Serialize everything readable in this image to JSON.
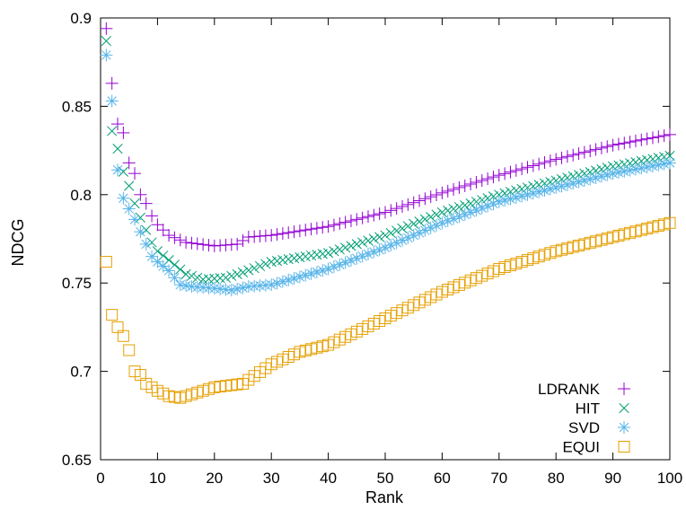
{
  "chart_data": {
    "type": "scatter",
    "xlabel": "Rank",
    "ylabel": "NDCG",
    "xlim": [
      0,
      100
    ],
    "ylim": [
      0.65,
      0.9
    ],
    "x_ticks": [
      0,
      10,
      20,
      30,
      40,
      50,
      60,
      70,
      80,
      90,
      100
    ],
    "y_ticks": [
      "0.65",
      "0.7",
      "0.75",
      "0.8",
      "0.85",
      "0.9"
    ],
    "grid": false,
    "legend_position": "bottom-right",
    "x_series_range": [
      1,
      100
    ],
    "series": [
      {
        "name": "LDRANK",
        "marker": "plus",
        "color": "#9400d3",
        "anchors": [
          [
            1,
            0.894
          ],
          [
            2,
            0.863
          ],
          [
            3,
            0.84
          ],
          [
            4,
            0.835
          ],
          [
            5,
            0.818
          ],
          [
            6,
            0.812
          ],
          [
            7,
            0.8
          ],
          [
            8,
            0.795
          ],
          [
            9,
            0.788
          ],
          [
            10,
            0.783
          ],
          [
            12,
            0.777
          ],
          [
            15,
            0.773
          ],
          [
            20,
            0.771
          ],
          [
            24,
            0.772
          ],
          [
            26,
            0.776
          ],
          [
            30,
            0.777
          ],
          [
            40,
            0.782
          ],
          [
            50,
            0.79
          ],
          [
            60,
            0.801
          ],
          [
            70,
            0.811
          ],
          [
            80,
            0.82
          ],
          [
            90,
            0.828
          ],
          [
            100,
            0.834
          ]
        ]
      },
      {
        "name": "HIT",
        "marker": "x",
        "color": "#009e73",
        "anchors": [
          [
            1,
            0.887
          ],
          [
            2,
            0.836
          ],
          [
            3,
            0.826
          ],
          [
            4,
            0.813
          ],
          [
            5,
            0.805
          ],
          [
            6,
            0.795
          ],
          [
            7,
            0.787
          ],
          [
            8,
            0.78
          ],
          [
            9,
            0.773
          ],
          [
            10,
            0.768
          ],
          [
            12,
            0.763
          ],
          [
            15,
            0.755
          ],
          [
            18,
            0.752
          ],
          [
            22,
            0.753
          ],
          [
            25,
            0.756
          ],
          [
            30,
            0.762
          ],
          [
            40,
            0.767
          ],
          [
            50,
            0.777
          ],
          [
            60,
            0.79
          ],
          [
            70,
            0.8
          ],
          [
            80,
            0.808
          ],
          [
            90,
            0.816
          ],
          [
            100,
            0.822
          ]
        ]
      },
      {
        "name": "SVD",
        "marker": "star",
        "color": "#56b4e9",
        "anchors": [
          [
            1,
            0.879
          ],
          [
            2,
            0.853
          ],
          [
            3,
            0.814
          ],
          [
            4,
            0.798
          ],
          [
            5,
            0.792
          ],
          [
            6,
            0.786
          ],
          [
            7,
            0.779
          ],
          [
            8,
            0.772
          ],
          [
            9,
            0.765
          ],
          [
            10,
            0.762
          ],
          [
            12,
            0.757
          ],
          [
            14,
            0.749
          ],
          [
            16,
            0.748
          ],
          [
            20,
            0.747
          ],
          [
            23,
            0.746
          ],
          [
            26,
            0.748
          ],
          [
            30,
            0.749
          ],
          [
            40,
            0.758
          ],
          [
            50,
            0.77
          ],
          [
            60,
            0.784
          ],
          [
            70,
            0.796
          ],
          [
            80,
            0.804
          ],
          [
            90,
            0.812
          ],
          [
            100,
            0.818
          ]
        ]
      },
      {
        "name": "EQUI",
        "marker": "square",
        "color": "#e69f00",
        "anchors": [
          [
            1,
            0.762
          ],
          [
            2,
            0.732
          ],
          [
            3,
            0.725
          ],
          [
            4,
            0.72
          ],
          [
            5,
            0.712
          ],
          [
            6,
            0.7
          ],
          [
            7,
            0.698
          ],
          [
            8,
            0.693
          ],
          [
            10,
            0.689
          ],
          [
            12,
            0.686
          ],
          [
            14,
            0.685
          ],
          [
            16,
            0.687
          ],
          [
            20,
            0.691
          ],
          [
            25,
            0.693
          ],
          [
            30,
            0.704
          ],
          [
            35,
            0.711
          ],
          [
            40,
            0.715
          ],
          [
            50,
            0.73
          ],
          [
            60,
            0.745
          ],
          [
            70,
            0.758
          ],
          [
            80,
            0.768
          ],
          [
            90,
            0.776
          ],
          [
            100,
            0.784
          ]
        ]
      }
    ]
  }
}
